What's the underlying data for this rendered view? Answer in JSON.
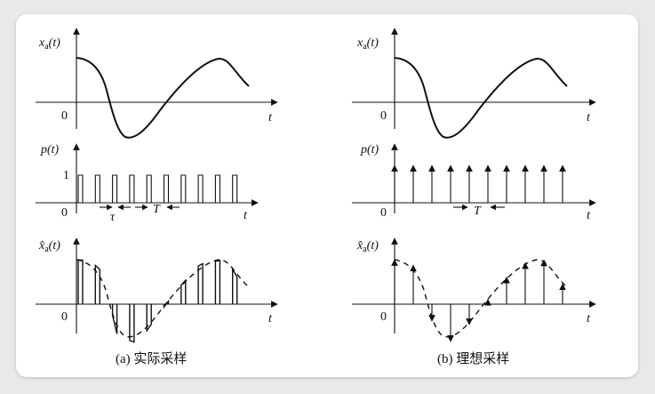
{
  "panels": [
    {
      "id": "a",
      "caption": "(a) 实际采样",
      "plots": [
        {
          "ylabel_main": "x",
          "ylabel_sub": "a",
          "ylabel_arg": "(t)",
          "origin": "0",
          "xlabel": "t"
        },
        {
          "ylabel_main": "p",
          "ylabel_sub": "",
          "ylabel_arg": "(t)",
          "origin": "0",
          "xlabel": "t",
          "level_label": "1",
          "width_label": "τ",
          "period_label": "T"
        },
        {
          "ylabel_main": "x̂",
          "ylabel_sub": "a",
          "ylabel_arg": "(t)",
          "origin": "0",
          "xlabel": "t"
        }
      ]
    },
    {
      "id": "b",
      "caption": "(b) 理想采样",
      "plots": [
        {
          "ylabel_main": "x",
          "ylabel_sub": "a",
          "ylabel_arg": "(t)",
          "origin": "0",
          "xlabel": "t"
        },
        {
          "ylabel_main": "p",
          "ylabel_sub": "",
          "ylabel_arg": "(t)",
          "origin": "0",
          "xlabel": "t",
          "period_label": "T"
        },
        {
          "ylabel_main": "x̂",
          "ylabel_sub": "a",
          "ylabel_arg": "(t)",
          "origin": "0",
          "xlabel": "t"
        }
      ]
    }
  ]
}
